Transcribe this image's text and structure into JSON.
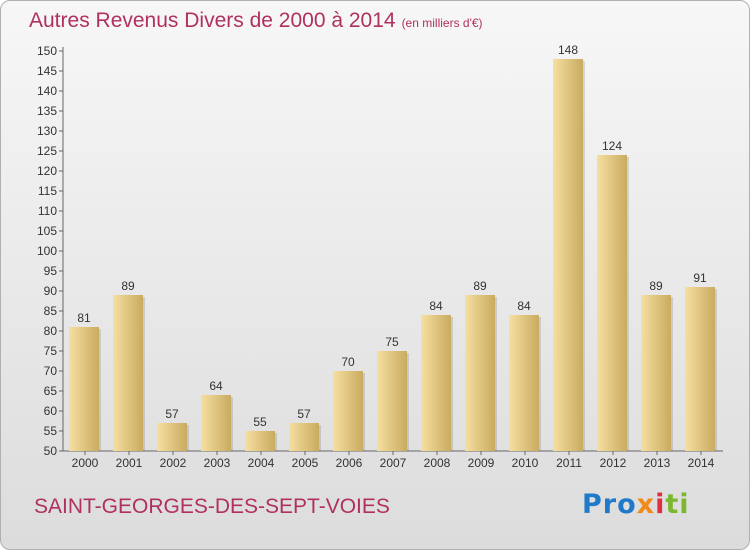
{
  "header": {
    "title": "Autres Revenus Divers de 2000 à 2014",
    "unit": "(en milliers d'€)"
  },
  "footer": {
    "commune": "SAINT-GEORGES-DES-SEPT-VOIES",
    "logo_parts": [
      "Pro",
      "x",
      "i",
      "ti"
    ]
  },
  "colors": {
    "title": "#b03060",
    "bar_light": "#f6dfa0",
    "bar_dark": "#c9ab60"
  },
  "chart_data": {
    "type": "bar",
    "title": "Autres Revenus Divers de 2000 à 2014",
    "subtitle": "(en milliers d'€)",
    "categories": [
      "2000",
      "2001",
      "2002",
      "2003",
      "2004",
      "2005",
      "2006",
      "2007",
      "2008",
      "2009",
      "2010",
      "2011",
      "2012",
      "2013",
      "2014"
    ],
    "values": [
      81,
      89,
      57,
      64,
      55,
      57,
      70,
      75,
      84,
      89,
      84,
      148,
      124,
      89,
      91
    ],
    "ylim": [
      50,
      150
    ],
    "ytick_step": 5,
    "grid": false,
    "legend": "none"
  }
}
